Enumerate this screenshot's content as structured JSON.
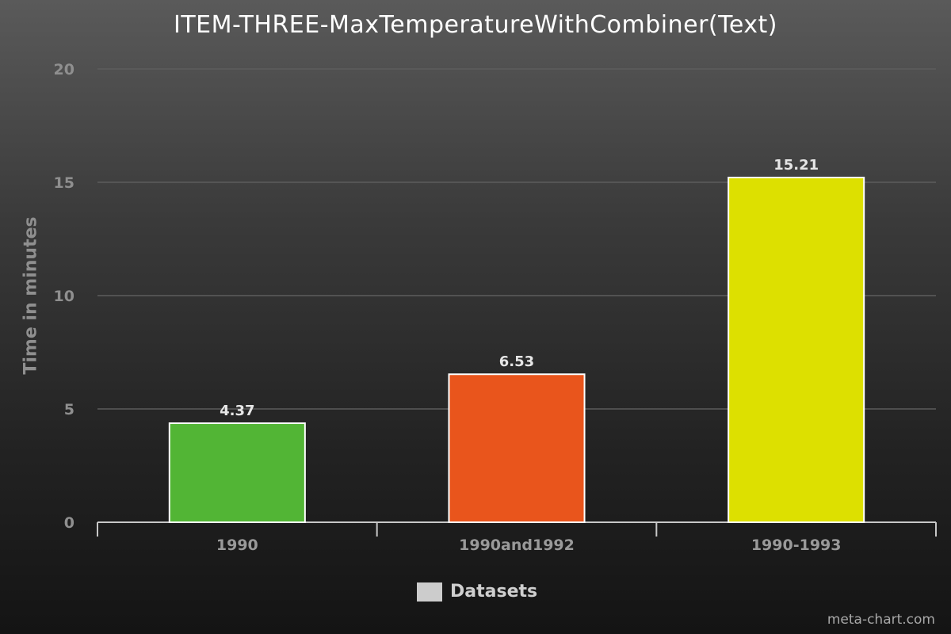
{
  "chart_data": {
    "type": "bar",
    "title": "ITEM-THREE-MaxTemperatureWithCombiner(Text)",
    "ylabel": "Time in minutes",
    "xlabel": "",
    "categories": [
      "1990",
      "1990and1992",
      "1990-1993"
    ],
    "values": [
      4.37,
      6.53,
      15.21
    ],
    "value_labels": [
      "4.37",
      "6.53",
      "15.21"
    ],
    "colors": [
      "#52b535",
      "#e9551c",
      "#dde000"
    ],
    "ylim": [
      0,
      20
    ],
    "yticks": [
      0,
      5,
      10,
      15,
      20
    ],
    "grid": true,
    "legend": {
      "label": "Datasets",
      "placement": "bottom-center",
      "color": "#cccccc"
    }
  },
  "watermark": "meta-chart.com"
}
